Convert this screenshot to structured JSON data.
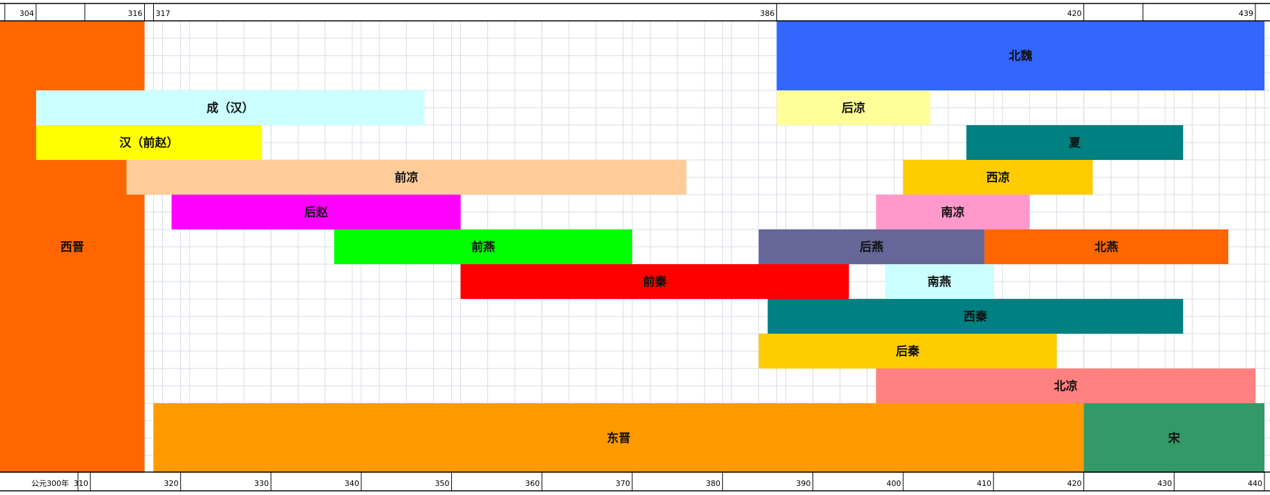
{
  "chart_data": {
    "type": "timeline-gantt",
    "title": "",
    "xlabel": "",
    "ylabel": "",
    "xlim": [
      300,
      440
    ],
    "grid": true,
    "top_axis": {
      "marks": [
        304,
        316,
        317,
        386,
        420,
        439
      ]
    },
    "bottom_axis": {
      "first_label": "公元300年",
      "ticks": [
        310,
        320,
        330,
        340,
        350,
        360,
        370,
        380,
        390,
        400,
        410,
        420,
        430,
        440
      ]
    },
    "bars": [
      {
        "name": "西晋",
        "start": 300,
        "end": 316,
        "row_start": 0,
        "row_end": 13,
        "color": "#ff6600"
      },
      {
        "name": "北魏",
        "start": 386,
        "end": 440,
        "row_start": 0,
        "row_end": 2,
        "color": "#3366ff"
      },
      {
        "name": "成（汉）",
        "start": 304,
        "end": 347,
        "row_start": 2,
        "row_end": 3,
        "color": "#ccffff"
      },
      {
        "name": "后凉",
        "start": 386,
        "end": 403,
        "row_start": 2,
        "row_end": 3,
        "color": "#ffff99"
      },
      {
        "name": "汉（前赵）",
        "start": 304,
        "end": 329,
        "row_start": 3,
        "row_end": 4,
        "color": "#ffff00"
      },
      {
        "name": "夏",
        "start": 407,
        "end": 431,
        "row_start": 3,
        "row_end": 4,
        "color": "#008080"
      },
      {
        "name": "前凉",
        "start": 314,
        "end": 376,
        "row_start": 4,
        "row_end": 5,
        "color": "#ffcc99"
      },
      {
        "name": "西凉",
        "start": 400,
        "end": 421,
        "row_start": 4,
        "row_end": 5,
        "color": "#ffcc00"
      },
      {
        "name": "后赵",
        "start": 319,
        "end": 351,
        "row_start": 5,
        "row_end": 6,
        "color": "#ff00ff"
      },
      {
        "name": "南凉",
        "start": 397,
        "end": 414,
        "row_start": 5,
        "row_end": 6,
        "color": "#ff99cc"
      },
      {
        "name": "前燕",
        "start": 337,
        "end": 370,
        "row_start": 6,
        "row_end": 7,
        "color": "#00ff00"
      },
      {
        "name": "后燕",
        "start": 384,
        "end": 409,
        "row_start": 6,
        "row_end": 7,
        "color": "#666699"
      },
      {
        "name": "北燕",
        "start": 409,
        "end": 436,
        "row_start": 6,
        "row_end": 7,
        "color": "#ff6600"
      },
      {
        "name": "前秦",
        "start": 351,
        "end": 394,
        "row_start": 7,
        "row_end": 8,
        "color": "#ff0000"
      },
      {
        "name": "南燕",
        "start": 398,
        "end": 410,
        "row_start": 7,
        "row_end": 8,
        "color": "#ccffff"
      },
      {
        "name": "西秦",
        "start": 385,
        "end": 431,
        "row_start": 8,
        "row_end": 9,
        "color": "#008080"
      },
      {
        "name": "后秦",
        "start": 384,
        "end": 417,
        "row_start": 9,
        "row_end": 10,
        "color": "#ffcc00"
      },
      {
        "name": "北凉",
        "start": 397,
        "end": 439,
        "row_start": 10,
        "row_end": 11,
        "color": "#ff8080"
      },
      {
        "name": "东晋",
        "start": 317,
        "end": 420,
        "row_start": 11,
        "row_end": 13,
        "color": "#ff9900"
      },
      {
        "name": "宋",
        "start": 420,
        "end": 440,
        "row_start": 11,
        "row_end": 13,
        "color": "#339966"
      }
    ]
  }
}
